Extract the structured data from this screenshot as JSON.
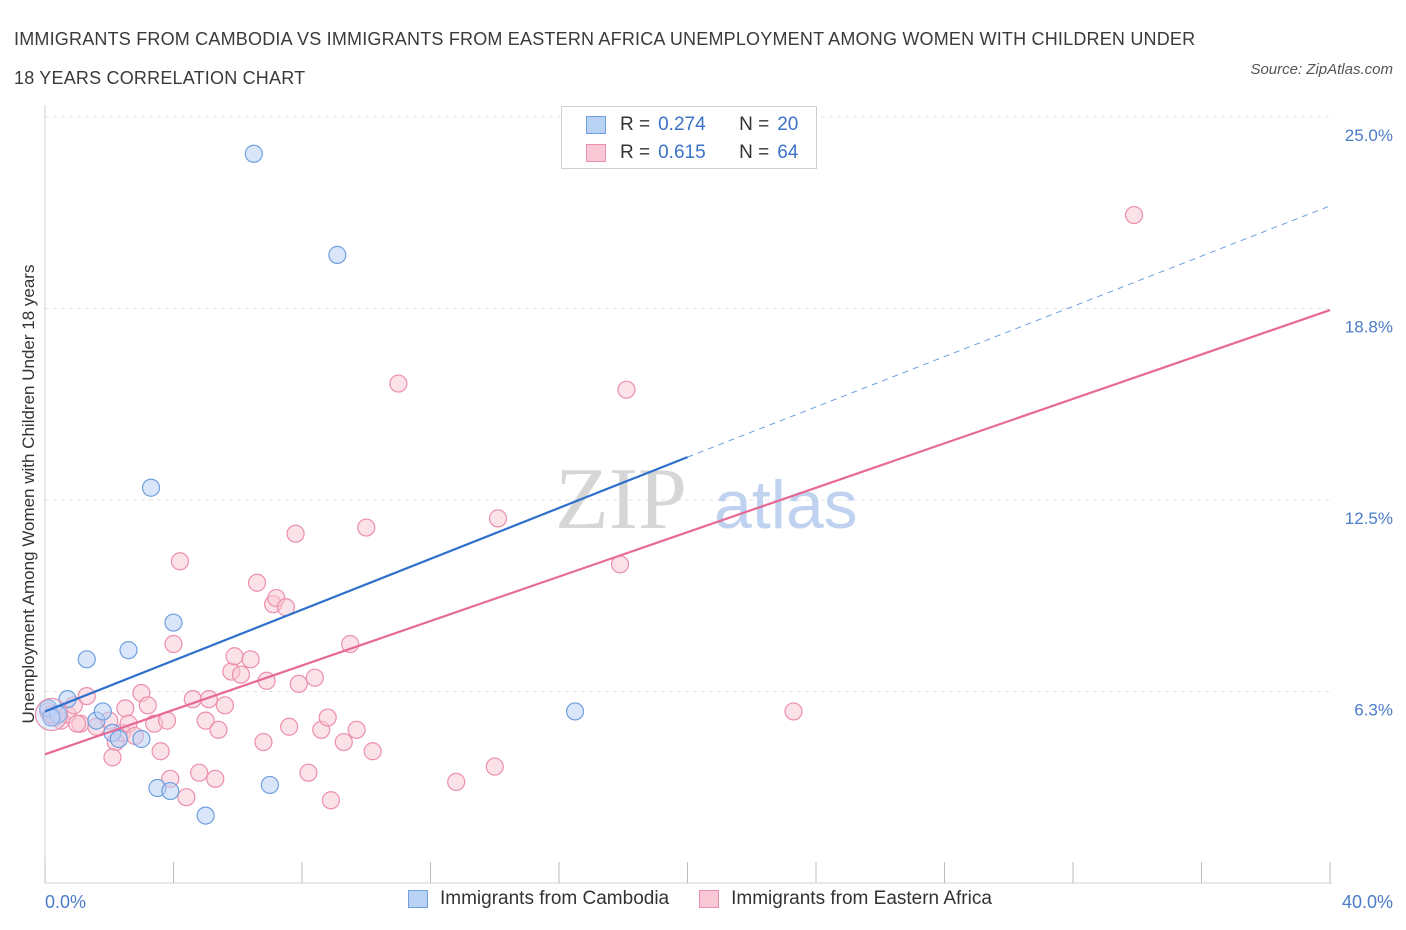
{
  "title": "IMMIGRANTS FROM CAMBODIA VS IMMIGRANTS FROM EASTERN AFRICA UNEMPLOYMENT AMONG WOMEN WITH CHILDREN UNDER 18 YEARS CORRELATION CHART",
  "source": "Source: ZipAtlas.com",
  "watermark": {
    "zip": "ZIP",
    "atlas": "atlas"
  },
  "colors": {
    "cambodia_fill": "#b9d2f5",
    "cambodia_stroke": "#6f9fde",
    "cambodia_line": "#2f6fcc",
    "eafrica_fill": "#f8c8d6",
    "eafrica_stroke": "#ec8fab",
    "eafrica_line": "#e66a95",
    "axis_text": "#4a7cc9",
    "grid": "#e3e3e3"
  },
  "legend": {
    "rows": [
      {
        "r_label": "R =",
        "r_value": "0.274",
        "n_label": "N =",
        "n_value": "20"
      },
      {
        "r_label": "R =",
        "r_value": "0.615",
        "n_label": "N =",
        "n_value": "64"
      }
    ]
  },
  "bottom_legend": [
    "Immigrants from Cambodia",
    "Immigrants from Eastern Africa"
  ],
  "chart_data": {
    "type": "scatter",
    "xlabel": "",
    "ylabel": "Unemployment Among Women with Children Under 18 years",
    "x_tick_labels": [
      "0.0%",
      "40.0%"
    ],
    "y_tick_labels": [
      "6.3%",
      "12.5%",
      "18.8%",
      "25.0%"
    ],
    "y_ticks": [
      6.25,
      12.5,
      18.75,
      25.0
    ],
    "xlim": [
      0,
      40
    ],
    "ylim": [
      0,
      25
    ],
    "grid": true,
    "legend_position": "top-center",
    "series": [
      {
        "name": "Immigrants from Cambodia",
        "points": [
          [
            0.1,
            5.7
          ],
          [
            0.4,
            5.5
          ],
          [
            0.7,
            6.0
          ],
          [
            1.3,
            7.3
          ],
          [
            1.6,
            5.3
          ],
          [
            1.8,
            5.6
          ],
          [
            2.1,
            4.9
          ],
          [
            2.3,
            4.7
          ],
          [
            2.6,
            7.6
          ],
          [
            3.0,
            4.7
          ],
          [
            3.3,
            12.9
          ],
          [
            3.5,
            3.1
          ],
          [
            3.9,
            3.0
          ],
          [
            4.0,
            8.5
          ],
          [
            5.0,
            2.2
          ],
          [
            6.5,
            23.8
          ],
          [
            7.0,
            3.2
          ],
          [
            9.1,
            20.5
          ],
          [
            16.5,
            5.6
          ],
          [
            0.2,
            5.4
          ]
        ],
        "trend": {
          "x": [
            0,
            20
          ],
          "y": [
            5.6,
            13.9
          ],
          "dashed_extension": {
            "x": [
              20,
              40
            ],
            "y": [
              13.9,
              22.1
            ]
          }
        }
      },
      {
        "name": "Immigrants from Eastern Africa",
        "points": [
          [
            0.1,
            5.6
          ],
          [
            0.3,
            5.4
          ],
          [
            0.5,
            5.3
          ],
          [
            0.7,
            5.5
          ],
          [
            0.9,
            5.8
          ],
          [
            1.1,
            5.2
          ],
          [
            1.3,
            6.1
          ],
          [
            1.6,
            5.1
          ],
          [
            2.0,
            5.3
          ],
          [
            2.2,
            4.6
          ],
          [
            2.4,
            4.9
          ],
          [
            2.1,
            4.1
          ],
          [
            2.5,
            5.7
          ],
          [
            2.6,
            5.2
          ],
          [
            2.8,
            4.8
          ],
          [
            3.0,
            6.2
          ],
          [
            3.2,
            5.8
          ],
          [
            3.4,
            5.2
          ],
          [
            3.6,
            4.3
          ],
          [
            3.8,
            5.3
          ],
          [
            3.9,
            3.4
          ],
          [
            4.0,
            7.8
          ],
          [
            4.2,
            10.5
          ],
          [
            4.4,
            2.8
          ],
          [
            4.6,
            6.0
          ],
          [
            4.8,
            3.6
          ],
          [
            5.0,
            5.3
          ],
          [
            5.1,
            6.0
          ],
          [
            5.3,
            3.4
          ],
          [
            5.4,
            5.0
          ],
          [
            5.6,
            5.8
          ],
          [
            5.8,
            6.9
          ],
          [
            5.9,
            7.4
          ],
          [
            6.1,
            6.8
          ],
          [
            6.4,
            7.3
          ],
          [
            6.6,
            9.8
          ],
          [
            6.8,
            4.6
          ],
          [
            6.9,
            6.6
          ],
          [
            7.1,
            9.1
          ],
          [
            7.2,
            9.3
          ],
          [
            7.5,
            9.0
          ],
          [
            7.6,
            5.1
          ],
          [
            7.8,
            11.4
          ],
          [
            7.9,
            6.5
          ],
          [
            8.2,
            3.6
          ],
          [
            8.4,
            6.7
          ],
          [
            8.6,
            5.0
          ],
          [
            8.8,
            5.4
          ],
          [
            8.9,
            2.7
          ],
          [
            9.3,
            4.6
          ],
          [
            9.5,
            7.8
          ],
          [
            9.7,
            5.0
          ],
          [
            10.0,
            11.6
          ],
          [
            10.2,
            4.3
          ],
          [
            11.0,
            16.3
          ],
          [
            12.8,
            3.3
          ],
          [
            14.0,
            3.8
          ],
          [
            14.1,
            11.9
          ],
          [
            17.9,
            10.4
          ],
          [
            18.1,
            16.1
          ],
          [
            23.3,
            5.6
          ],
          [
            33.9,
            21.8
          ],
          [
            0.2,
            5.5
          ],
          [
            1.0,
            5.2
          ]
        ],
        "trend": {
          "x": [
            0,
            40
          ],
          "y": [
            4.2,
            18.7
          ]
        }
      }
    ]
  }
}
